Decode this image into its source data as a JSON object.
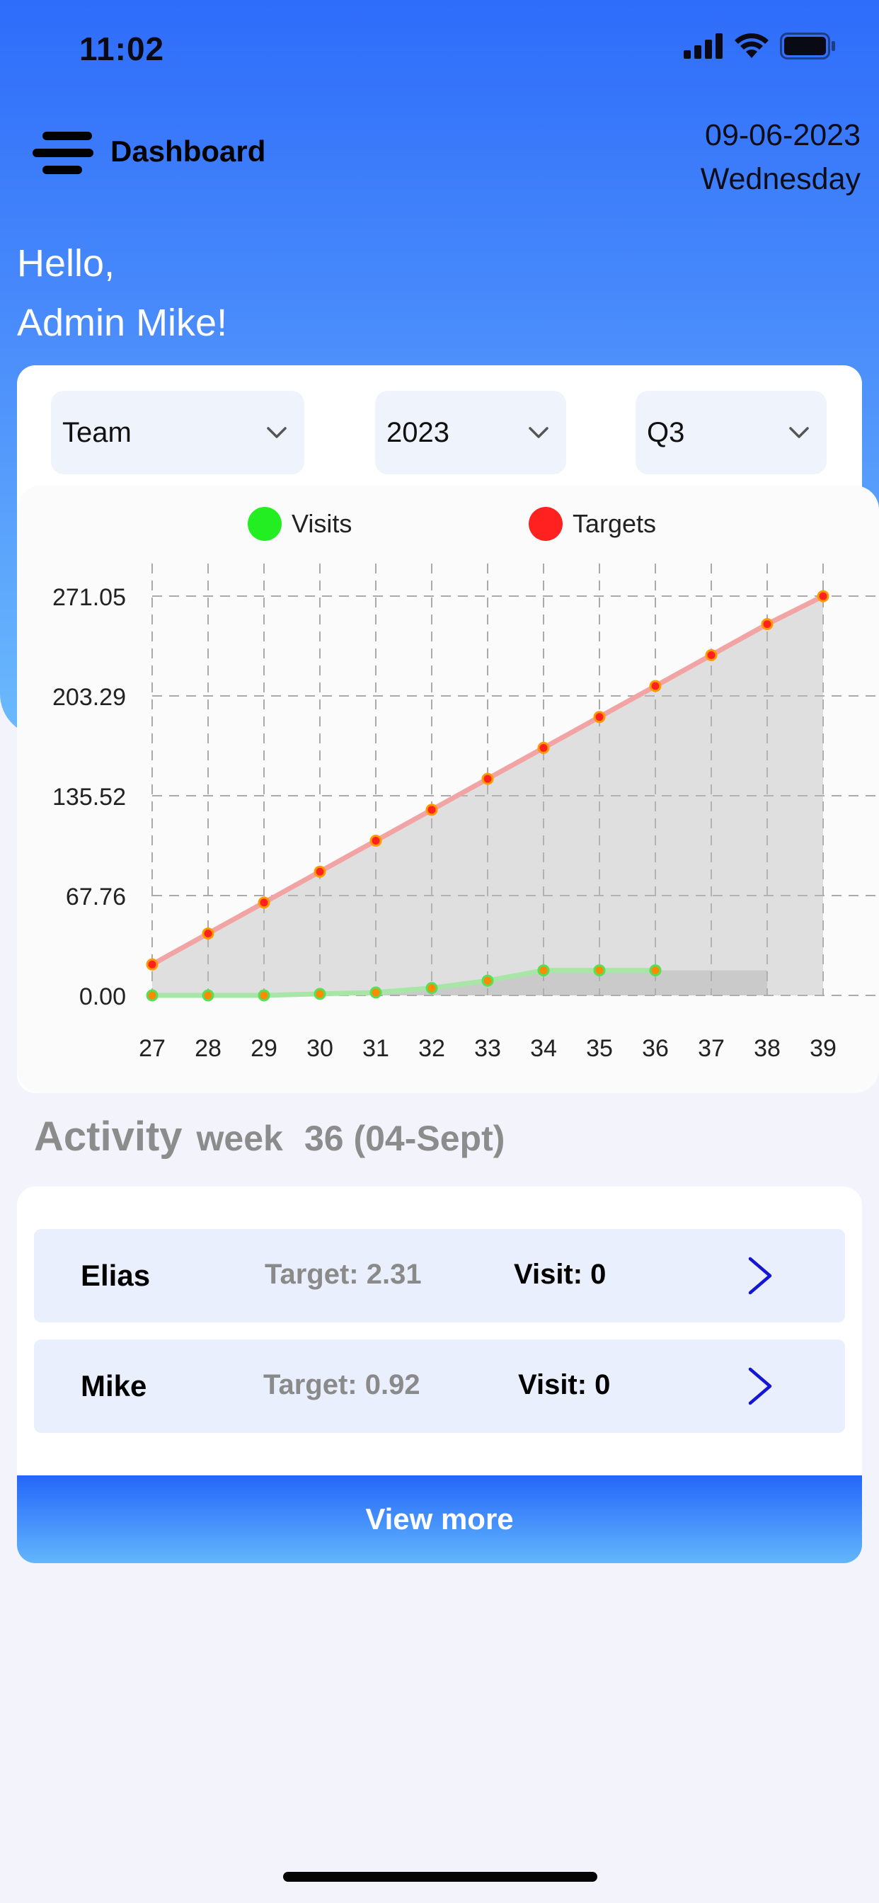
{
  "status_bar": {
    "time": "11:02"
  },
  "header": {
    "title": "Dashboard",
    "date": "09-06-2023",
    "weekday": "Wednesday"
  },
  "greeting": {
    "line1": "Hello,",
    "line2": "Admin Mike!"
  },
  "filters": {
    "team": "Team",
    "year": "2023",
    "quarter": "Q3"
  },
  "colors": {
    "accent": "#2e6cfa",
    "visits": "#22ee22",
    "targets": "#ff2020"
  },
  "chart_data": {
    "type": "line",
    "legend": [
      "Visits",
      "Targets"
    ],
    "x": [
      27,
      28,
      29,
      30,
      31,
      32,
      33,
      34,
      35,
      36,
      37,
      38,
      39
    ],
    "x_tick_labels": [
      "27",
      "28",
      "29",
      "30",
      "31",
      "32",
      "33",
      "34",
      "35",
      "36",
      "37",
      "38",
      "39"
    ],
    "y_tick_labels": [
      "271.05",
      "203.29",
      "135.52",
      "67.76",
      "0.00"
    ],
    "ylim": [
      0,
      271.05
    ],
    "grid": true,
    "legend_placement": "top",
    "series": [
      {
        "name": "Visits",
        "x": [
          27,
          28,
          29,
          30,
          31,
          32,
          33,
          34,
          35,
          36
        ],
        "values": [
          0,
          0,
          0,
          1,
          2,
          5,
          10,
          17,
          17,
          17
        ]
      },
      {
        "name": "Targets",
        "x": [
          27,
          28,
          29,
          30,
          31,
          32,
          33,
          34,
          35,
          36,
          37,
          38,
          39
        ],
        "values": [
          21,
          42,
          63,
          84,
          105,
          126,
          147,
          168,
          189,
          210,
          231,
          252,
          271
        ]
      }
    ]
  },
  "activity": {
    "title": "Activity",
    "week_label": "week",
    "week_value": "36 (04-Sept)",
    "rows": [
      {
        "name": "Elias",
        "target": "Target: 2.31",
        "visit": "Visit: 0"
      },
      {
        "name": "Mike",
        "target": "Target: 0.92",
        "visit": "Visit: 0"
      }
    ],
    "view_more": "View more"
  }
}
